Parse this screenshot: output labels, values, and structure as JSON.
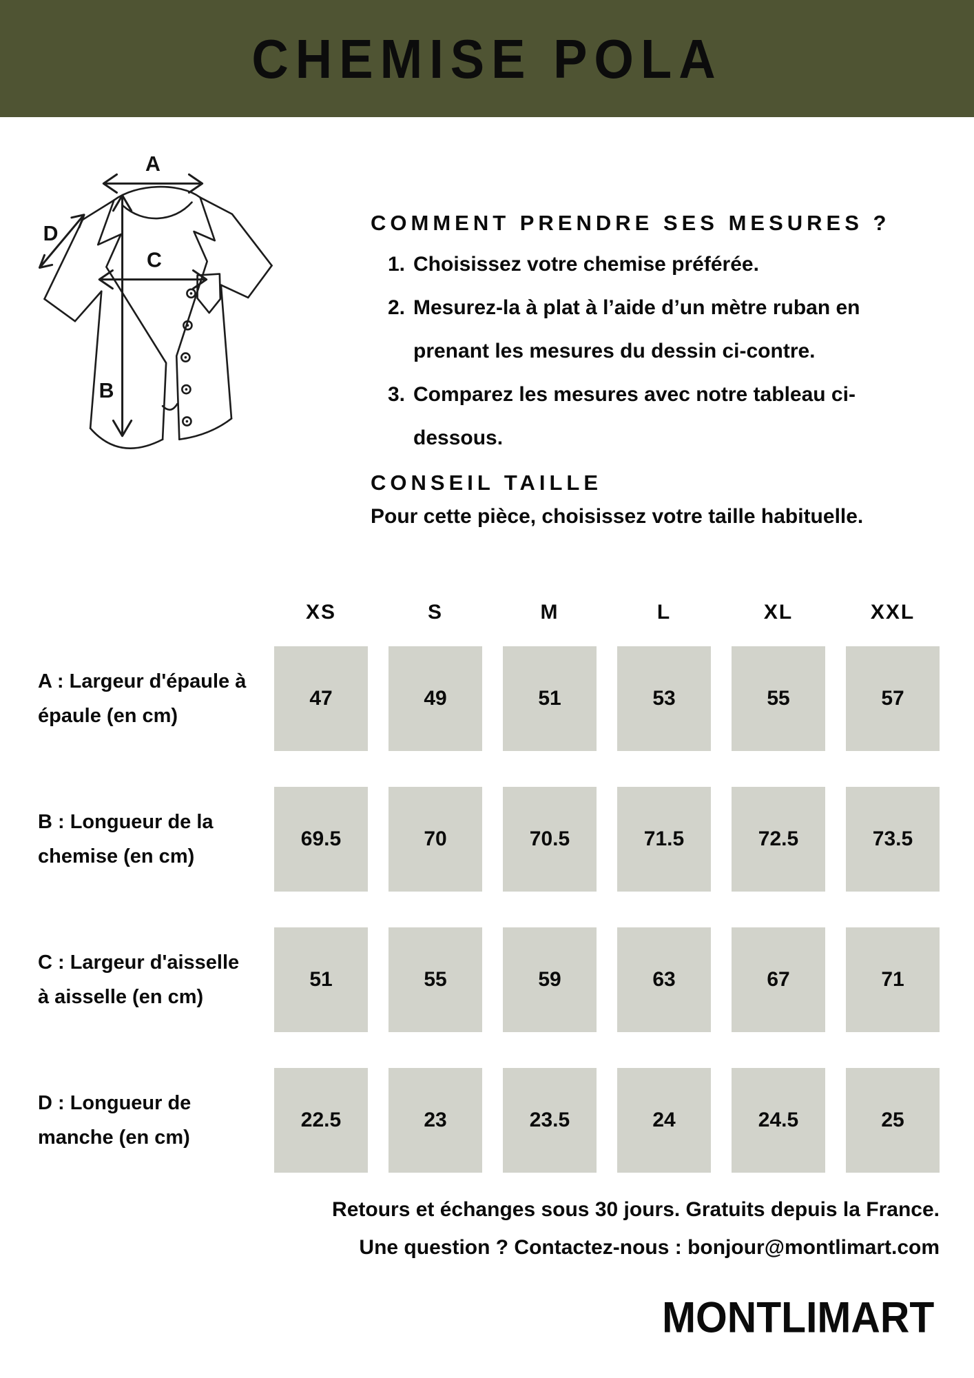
{
  "page": {
    "background": "#ffffff",
    "text_color": "#0b0b0b"
  },
  "header": {
    "title": "CHEMISE POLA",
    "background": "#4f5433"
  },
  "diagram": {
    "arrow_labels": {
      "a": "A",
      "b": "B",
      "c": "C",
      "d": "D"
    }
  },
  "instructions": {
    "heading": "COMMENT PRENDRE SES MESURES ?",
    "steps": [
      {
        "num": "1.",
        "text": "Choisissez votre chemise préférée."
      },
      {
        "num": "2.",
        "text": "Mesurez-la à plat à l’aide d’un mètre ruban en prenant les mesures du dessin ci-contre."
      },
      {
        "num": "3.",
        "text": "Comparez les mesures avec notre tableau ci-dessous."
      }
    ],
    "advice_heading": "CONSEIL TAILLE",
    "advice_text": "Pour cette pièce, choisissez votre taille habituelle."
  },
  "size_table": {
    "cell_background": "#d2d3cb",
    "sizes": [
      "XS",
      "S",
      "M",
      "L",
      "XL",
      "XXL"
    ],
    "rows": [
      {
        "label": "A : Largeur d'épaule à épaule (en cm)",
        "values": [
          "47",
          "49",
          "51",
          "53",
          "55",
          "57"
        ]
      },
      {
        "label": "B : Longueur de la chemise (en cm)",
        "values": [
          "69.5",
          "70",
          "70.5",
          "71.5",
          "72.5",
          "73.5"
        ]
      },
      {
        "label": "C : Largeur d'aisselle à aisselle (en cm)",
        "values": [
          "51",
          "55",
          "59",
          "63",
          "67",
          "71"
        ]
      },
      {
        "label": "D : Longueur de manche (en cm)",
        "values": [
          "22.5",
          "23",
          "23.5",
          "24",
          "24.5",
          "25"
        ]
      }
    ]
  },
  "footer": {
    "line1": "Retours et échanges sous 30 jours. Gratuits depuis la France.",
    "line2": "Une question ? Contactez-nous : bonjour@montlimart.com",
    "brand": "MONTLIMART"
  }
}
